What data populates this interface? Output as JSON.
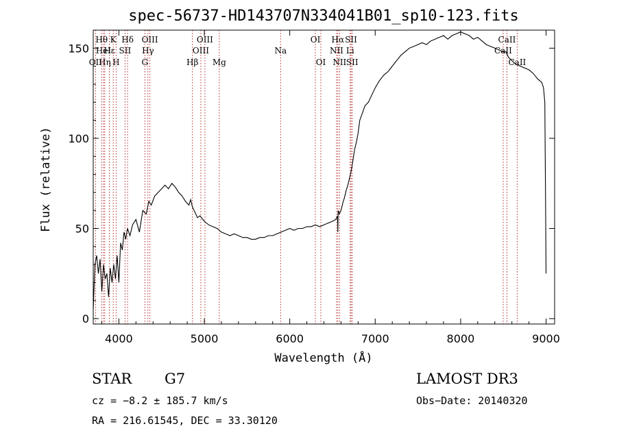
{
  "chart_data": {
    "type": "line",
    "title": "spec-56737-HD143707N334041B01_sp10-123.fits",
    "xlabel": "Wavelength (Å)",
    "ylabel": "Flux (relative)",
    "xlim": [
      3700,
      9100
    ],
    "ylim": [
      -3,
      160
    ],
    "xticks": [
      4000,
      5000,
      6000,
      7000,
      8000,
      9000
    ],
    "yticks": [
      0,
      50,
      100,
      150
    ],
    "series": [
      {
        "name": "spectrum",
        "x": [
          3700,
          3720,
          3740,
          3760,
          3780,
          3800,
          3820,
          3840,
          3860,
          3880,
          3900,
          3920,
          3940,
          3960,
          3980,
          4000,
          4020,
          4040,
          4060,
          4080,
          4100,
          4130,
          4160,
          4200,
          4240,
          4280,
          4320,
          4350,
          4380,
          4420,
          4460,
          4500,
          4540,
          4580,
          4620,
          4660,
          4700,
          4740,
          4780,
          4800,
          4820,
          4840,
          4860,
          4880,
          4900,
          4920,
          4950,
          5000,
          5050,
          5100,
          5150,
          5200,
          5250,
          5300,
          5350,
          5400,
          5450,
          5500,
          5550,
          5600,
          5650,
          5700,
          5750,
          5800,
          5850,
          5900,
          5950,
          6000,
          6050,
          6100,
          6150,
          6200,
          6250,
          6300,
          6350,
          6400,
          6450,
          6500,
          6540,
          6560,
          6563,
          6566,
          6580,
          6600,
          6620,
          6640,
          6660,
          6680,
          6700,
          6720,
          6740,
          6760,
          6780,
          6800,
          6820,
          6850,
          6880,
          6920,
          6960,
          7000,
          7050,
          7100,
          7150,
          7200,
          7250,
          7300,
          7350,
          7400,
          7450,
          7500,
          7550,
          7600,
          7650,
          7700,
          7750,
          7800,
          7850,
          7900,
          7950,
          8000,
          8050,
          8100,
          8150,
          8200,
          8250,
          8300,
          8350,
          8400,
          8450,
          8500,
          8530,
          8560,
          8600,
          8650,
          8700,
          8750,
          8800,
          8850,
          8900,
          8950,
          8970,
          8985,
          8995,
          9000
        ],
        "values": [
          5,
          30,
          35,
          25,
          33,
          15,
          30,
          22,
          25,
          12,
          28,
          20,
          30,
          22,
          35,
          20,
          42,
          38,
          48,
          44,
          50,
          46,
          52,
          55,
          48,
          60,
          58,
          65,
          63,
          68,
          70,
          72,
          74,
          72,
          75,
          73,
          70,
          68,
          65,
          64,
          63,
          66,
          62,
          60,
          58,
          56,
          57,
          54,
          52,
          51,
          50,
          48,
          47,
          46,
          47,
          46,
          45,
          45,
          44,
          44,
          45,
          45,
          46,
          46,
          47,
          48,
          49,
          50,
          49,
          50,
          50,
          51,
          51,
          52,
          51,
          52,
          53,
          54,
          55,
          57,
          48,
          60,
          58,
          60,
          64,
          67,
          71,
          74,
          78,
          82,
          88,
          94,
          98,
          103,
          110,
          114,
          118,
          120,
          124,
          128,
          132,
          135,
          137,
          140,
          143,
          146,
          148,
          150,
          151,
          152,
          153,
          152,
          154,
          155,
          156,
          157,
          155,
          157,
          158,
          159,
          158,
          157,
          155,
          156,
          154,
          152,
          151,
          150,
          149,
          148,
          148,
          145,
          143,
          141,
          140,
          139,
          138,
          136,
          133,
          131,
          128,
          120,
          60,
          25
        ]
      }
    ],
    "spectral_lines": [
      {
        "label": "Hθ",
        "x": 3798,
        "row": 1
      },
      {
        "label": "HeI",
        "x": 3820,
        "row": 2
      },
      {
        "label": "OII",
        "x": 3727,
        "row": 3
      },
      {
        "label": "Hη",
        "x": 3835,
        "row": 3
      },
      {
        "label": "Hε",
        "x": 3889,
        "row": 2
      },
      {
        "label": "K",
        "x": 3934,
        "row": 1
      },
      {
        "label": "H",
        "x": 3968,
        "row": 3
      },
      {
        "label": "SII",
        "x": 4072,
        "row": 2
      },
      {
        "label": "Hδ",
        "x": 4102,
        "row": 1
      },
      {
        "label": "OIII",
        "x": 4363,
        "row": 1
      },
      {
        "label": "Hγ",
        "x": 4340,
        "row": 2
      },
      {
        "label": "G",
        "x": 4304,
        "row": 3
      },
      {
        "label": "Hβ",
        "x": 4861,
        "row": 3
      },
      {
        "label": "OIII",
        "x": 5007,
        "row": 1
      },
      {
        "label": "OIII",
        "x": 4959,
        "row": 2
      },
      {
        "label": "Mg",
        "x": 5175,
        "row": 3
      },
      {
        "label": "Na",
        "x": 5893,
        "row": 2
      },
      {
        "label": "OI",
        "x": 6300,
        "row": 1
      },
      {
        "label": "OI",
        "x": 6364,
        "row": 3
      },
      {
        "label": "Hα",
        "x": 6563,
        "row": 1
      },
      {
        "label": "NII",
        "x": 6548,
        "row": 2
      },
      {
        "label": "NII",
        "x": 6583,
        "row": 3
      },
      {
        "label": "SII",
        "x": 6717,
        "row": 1
      },
      {
        "label": "Li",
        "x": 6707,
        "row": 2
      },
      {
        "label": "SII",
        "x": 6731,
        "row": 3
      },
      {
        "label": "CaII",
        "x": 8542,
        "row": 1
      },
      {
        "label": "CaII",
        "x": 8498,
        "row": 2
      },
      {
        "label": "CaII",
        "x": 8662,
        "row": 3
      }
    ]
  },
  "info": {
    "class": "STAR",
    "subclass": "G7",
    "survey": "LAMOST DR3",
    "cz": "cz = −8.2 ± 185.7 km/s",
    "obs_date": "Obs−Date: 20140320",
    "radec": "RA = 216.61545, DEC =  33.30120"
  },
  "colors": {
    "line_marker": "#b22222",
    "spectrum": "#000000",
    "axis": "#000000"
  }
}
